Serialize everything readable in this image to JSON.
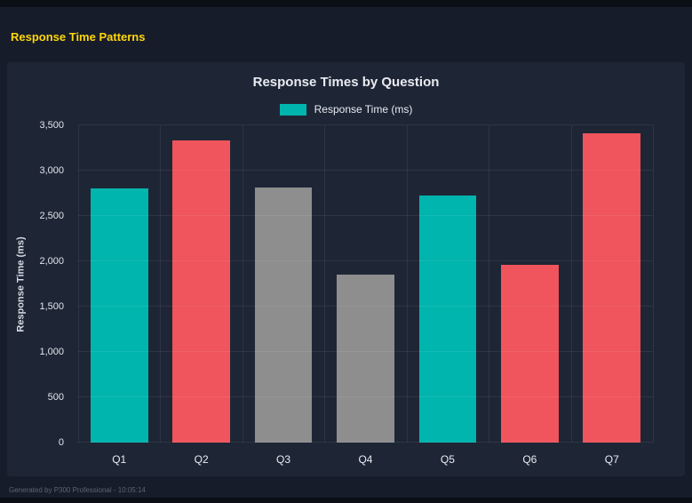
{
  "page": {
    "title": "Response Time Patterns",
    "footer": "Generated by P300 Professional - 10:05:14"
  },
  "chart_data": {
    "type": "bar",
    "title": "Response Times by Question",
    "legend": [
      {
        "label": "Response Time (ms)",
        "color": "#00b5ad"
      }
    ],
    "legend_position": "top",
    "categories": [
      "Q1",
      "Q2",
      "Q3",
      "Q4",
      "Q5",
      "Q6",
      "Q7"
    ],
    "values": [
      2800,
      3330,
      2810,
      1850,
      2730,
      1960,
      3410
    ],
    "bar_colors": [
      "#00b5ad",
      "#f0545c",
      "#8e8e8e",
      "#8e8e8e",
      "#00b5ad",
      "#f0545c",
      "#f0545c"
    ],
    "xlabel": "",
    "ylabel": "Response Time (ms)",
    "ylim": [
      0,
      3500
    ],
    "yticks": [
      0,
      500,
      1000,
      1500,
      2000,
      2500,
      3000,
      3500
    ],
    "ytick_labels": [
      "0",
      "500",
      "1,000",
      "1,500",
      "2,000",
      "2,500",
      "3,000",
      "3,500"
    ],
    "grid": true
  },
  "colors": {
    "background": "#0b0e15",
    "surface": "#161c2a",
    "card": "#1e2636",
    "accent_title": "#ffd60a"
  }
}
